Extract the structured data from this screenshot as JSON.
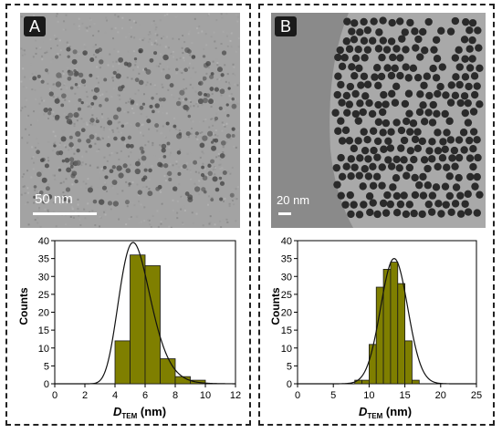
{
  "panels": {
    "a": {
      "label": "A",
      "scale_bar_text": "50  nm"
    },
    "b": {
      "label": "B",
      "scale_bar_text": "20 nm"
    }
  },
  "colors": {
    "bar_fill": "#7f7f00",
    "bar_edge": "#1a1a1a",
    "fit_line": "#111111",
    "border": "#222222"
  },
  "chart_data": [
    {
      "type": "bar",
      "panel": "A",
      "ylabel": "Counts",
      "xlabel_main": "D",
      "xlabel_sub": "TEM",
      "xlabel_unit": " (nm)",
      "xlim": [
        0,
        12
      ],
      "ylim": [
        0,
        40
      ],
      "xticks": [
        0,
        2,
        4,
        6,
        8,
        10,
        12
      ],
      "yticks": [
        0,
        5,
        10,
        15,
        20,
        25,
        30,
        35,
        40
      ],
      "bin_width": 1,
      "bins": [
        {
          "x": 4,
          "value": 12
        },
        {
          "x": 5,
          "value": 36
        },
        {
          "x": 6,
          "value": 33
        },
        {
          "x": 7,
          "value": 7
        },
        {
          "x": 8,
          "value": 2
        },
        {
          "x": 9,
          "value": 1
        }
      ],
      "fit": {
        "type": "lognormal",
        "center": 5.2,
        "sigma": 0.2,
        "peak": 39.5
      }
    },
    {
      "type": "bar",
      "panel": "B",
      "ylabel": "Counts",
      "xlabel_main": "D",
      "xlabel_sub": "TEM",
      "xlabel_unit": " (nm)",
      "xlim": [
        0,
        25
      ],
      "ylim": [
        0,
        40
      ],
      "xticks": [
        0,
        5,
        10,
        15,
        20,
        25
      ],
      "yticks": [
        0,
        5,
        10,
        15,
        20,
        25,
        30,
        35,
        40
      ],
      "bin_width": 1,
      "bins": [
        {
          "x": 8,
          "value": 1
        },
        {
          "x": 9,
          "value": 1
        },
        {
          "x": 10,
          "value": 11
        },
        {
          "x": 11,
          "value": 27
        },
        {
          "x": 12,
          "value": 32
        },
        {
          "x": 13,
          "value": 34
        },
        {
          "x": 14,
          "value": 28
        },
        {
          "x": 15,
          "value": 12
        },
        {
          "x": 16,
          "value": 1
        }
      ],
      "fit": {
        "type": "gaussian",
        "center": 13.5,
        "sigma": 1.9,
        "peak": 35
      }
    }
  ]
}
